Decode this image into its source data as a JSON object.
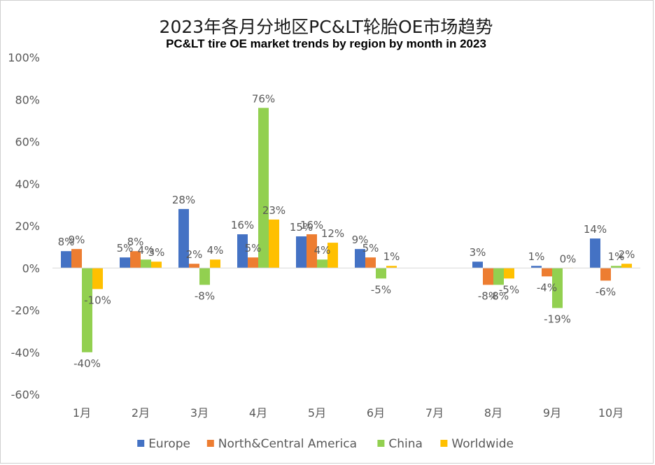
{
  "chart_data": {
    "type": "bar",
    "title": "2023年各月分地区PC&LT轮胎OE市场趋势",
    "subtitle": "PC&LT tire OE market trends by region by month in 2023",
    "categories": [
      "1月",
      "2月",
      "3月",
      "4月",
      "5月",
      "6月",
      "7月",
      "8月",
      "9月",
      "10月"
    ],
    "ylim": [
      -60,
      100
    ],
    "yticks": [
      -60,
      -40,
      -20,
      0,
      20,
      40,
      60,
      80,
      100
    ],
    "ytick_labels": [
      "-60%",
      "-40%",
      "-20%",
      "0%",
      "20%",
      "40%",
      "60%",
      "80%",
      "100%"
    ],
    "grid": false,
    "legend_position": "bottom",
    "series": [
      {
        "name": "Europe",
        "color": "#4472C4",
        "values": [
          8,
          5,
          28,
          16,
          15,
          9,
          null,
          3,
          1,
          14
        ],
        "labels": [
          "8%",
          "5%",
          "28%",
          "16%",
          "15%",
          "9%",
          "",
          "3%",
          "1%",
          "14%"
        ]
      },
      {
        "name": "North&Central America",
        "color": "#ED7D31",
        "values": [
          9,
          8,
          2,
          5,
          16,
          5,
          null,
          -8,
          -4,
          -6
        ],
        "labels": [
          "9%",
          "8%",
          "2%",
          "5%",
          "16%",
          "5%",
          "",
          "-8%",
          "-4%",
          "-6%"
        ]
      },
      {
        "name": "China",
        "color": "#92D050",
        "values": [
          -40,
          4,
          -8,
          76,
          4,
          -5,
          null,
          -8,
          -19,
          1
        ],
        "labels": [
          "-40%",
          "4%",
          "-8%",
          "76%",
          "4%",
          "-5%",
          "",
          "-8%",
          "-19%",
          "1%"
        ]
      },
      {
        "name": "Worldwide",
        "color": "#FFC000",
        "values": [
          -10,
          3,
          4,
          23,
          12,
          1,
          null,
          -5,
          0,
          2
        ],
        "labels": [
          "-10%",
          "3%",
          "4%",
          "23%",
          "12%",
          "1%",
          "",
          "-5%",
          "0%",
          "2%"
        ]
      }
    ]
  }
}
